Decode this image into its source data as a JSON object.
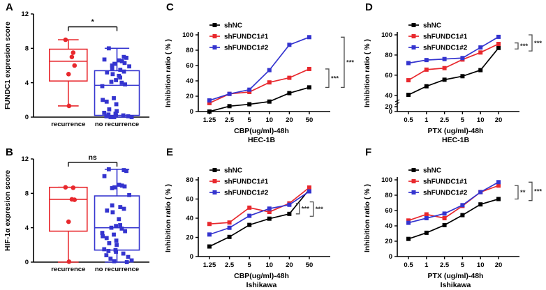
{
  "colors": {
    "black": "#000000",
    "red": "#E8282D",
    "blue": "#3434CF",
    "bracket": "#4d4d4d",
    "stars": "#2b2b2b"
  },
  "chart_data": [
    {
      "panel_label": "A",
      "type": "box",
      "ylabel": "FUNDC1 expresion score",
      "ylim": [
        0,
        12
      ],
      "yticks": [
        0,
        4,
        8,
        12
      ],
      "categories": [
        "recurrence",
        "no recurrence"
      ],
      "significance": {
        "label": "*",
        "y": 10.5
      },
      "groups": [
        {
          "name": "recurrence",
          "color": "#E8282D",
          "marker": "circle",
          "box": {
            "min": 1.3,
            "q1": 4.2,
            "median": 6.5,
            "q3": 7.9,
            "max": 9.0
          },
          "points": [
            9.0,
            7.5,
            7.0,
            6.0,
            5.0,
            1.3
          ]
        },
        {
          "name": "no recurrence",
          "color": "#3434CF",
          "marker": "square",
          "box": {
            "min": 0,
            "q1": 0.2,
            "median": 3.7,
            "q3": 5.4,
            "max": 8.0
          },
          "points": [
            8.0,
            7.0,
            6.9,
            6.7,
            6.6,
            6.5,
            6.3,
            6.2,
            6.0,
            5.9,
            5.7,
            5.5,
            5.3,
            5.2,
            5.0,
            4.8,
            4.6,
            4.3,
            4.1,
            4.0,
            3.8,
            3.6,
            2.2,
            2.0,
            1.8,
            1.5,
            0.9,
            0.7,
            0.5,
            0.4,
            0.3,
            0.2,
            0.2,
            0.1,
            0.1,
            0.0,
            0.0,
            0.0
          ]
        }
      ]
    },
    {
      "panel_label": "B",
      "type": "box",
      "ylabel": "HIF-1α expresion score",
      "ylim": [
        0,
        12
      ],
      "yticks": [
        0,
        4,
        8,
        12
      ],
      "categories": [
        "recurrence",
        "no recurrence"
      ],
      "significance": {
        "label": "ns",
        "y": 11.6
      },
      "groups": [
        {
          "name": "recurrence",
          "color": "#E8282D",
          "marker": "circle",
          "box": {
            "min": 0,
            "q1": 3.6,
            "median": 7.3,
            "q3": 8.7,
            "max": 8.7
          },
          "points": [
            8.7,
            8.65,
            7.3,
            7.25,
            4.7,
            0.05
          ]
        },
        {
          "name": "no recurrence",
          "color": "#3434CF",
          "marker": "square",
          "box": {
            "min": 0,
            "q1": 1.4,
            "median": 4.0,
            "q3": 7.7,
            "max": 10.8
          },
          "points": [
            10.8,
            10.7,
            10.6,
            10.0,
            9.0,
            8.9,
            8.8,
            8.7,
            8.6,
            7.8,
            6.6,
            6.4,
            6.2,
            6.0,
            5.8,
            5.0,
            4.3,
            4.2,
            4.0,
            3.9,
            3.6,
            3.4,
            3.2,
            3.0,
            2.8,
            2.5,
            2.2,
            2.0,
            1.5,
            1.4,
            1.3,
            1.2,
            1.0,
            0.8,
            0.6,
            0.4,
            0.2,
            0.1,
            0.0
          ]
        }
      ]
    },
    {
      "panel_label": "C",
      "type": "line",
      "x_categories": [
        "1.25",
        "2.5",
        "5",
        "10",
        "20",
        "50"
      ],
      "xlabel": "CBP(ug/ml)-48h",
      "cell_line": "HEC-1B",
      "ylabel": "Inhibition ratio ( % )",
      "ylim": [
        0,
        100
      ],
      "yticks": [
        0,
        20,
        40,
        60,
        80,
        100
      ],
      "series": [
        {
          "name": "shNC",
          "color": "#000000",
          "values": [
            0,
            7,
            9.5,
            13,
            24,
            31.5
          ]
        },
        {
          "name": "shFUNDC1#1",
          "color": "#E8282D",
          "values": [
            11,
            23,
            25.5,
            38,
            44,
            55.5
          ]
        },
        {
          "name": "shFUNDC1#2",
          "color": "#3434CF",
          "values": [
            14.5,
            23,
            28.5,
            54,
            87,
            97
          ]
        }
      ],
      "sig_brackets": [
        {
          "stars": "***",
          "x_offset": 6,
          "y_top": 55.5,
          "y_bottom": 31.5
        },
        {
          "stars": "***",
          "x_offset": 28,
          "y_top": 97,
          "y_bottom": 31.5
        }
      ]
    },
    {
      "panel_label": "D",
      "type": "line",
      "x_categories": [
        "0.5",
        "1",
        "2.5",
        "5",
        "10",
        "20"
      ],
      "xlabel": "PTX (ug/ml)-48h",
      "cell_line": "HEC-1B",
      "ylabel": "Inhibition ratio ( % )",
      "ylim": [
        35,
        100
      ],
      "yticks": [
        40,
        60,
        80,
        100
      ],
      "ybreak": {
        "lower_ticks": [
          0,
          20
        ]
      },
      "series": [
        {
          "name": "shNC",
          "color": "#000000",
          "values": [
            40.5,
            49,
            55.5,
            59,
            65,
            87
          ]
        },
        {
          "name": "shFUNDC1#1",
          "color": "#E8282D",
          "values": [
            55,
            65.5,
            67,
            75.5,
            82.5,
            91
          ]
        },
        {
          "name": "shFUNDC1#2",
          "color": "#3434CF",
          "values": [
            72,
            75,
            76,
            77,
            87.5,
            98
          ]
        }
      ],
      "sig_brackets": [
        {
          "stars": "***",
          "x_offset": 6,
          "y_top": 92,
          "y_bottom": 86
        },
        {
          "stars": "***",
          "x_offset": 26,
          "y_top": 100,
          "y_bottom": 84
        }
      ]
    },
    {
      "panel_label": "E",
      "type": "line",
      "x_categories": [
        "1.25",
        "2.5",
        "5",
        "10",
        "20",
        "50"
      ],
      "xlabel": "CBP(ug/ml)-48h",
      "cell_line": "Ishikawa",
      "ylabel": "Inhibition ratio ( % )",
      "ylim": [
        0,
        80
      ],
      "yticks": [
        0,
        20,
        40,
        60,
        80
      ],
      "series": [
        {
          "name": "shNC",
          "color": "#000000",
          "values": [
            10.5,
            20.5,
            33,
            39.5,
            44.5,
            70
          ]
        },
        {
          "name": "shFUNDC1#1",
          "color": "#E8282D",
          "values": [
            34,
            35.5,
            51,
            46.5,
            55.5,
            72
          ]
        },
        {
          "name": "shFUNDC1#2",
          "color": "#3434CF",
          "values": [
            23,
            30,
            42.5,
            50,
            54,
            68
          ]
        }
      ],
      "sig_brackets": [
        {
          "stars": "***",
          "x_frac": 0.8,
          "y_top": 55.5,
          "y_bottom": 44.5
        },
        {
          "stars": "***",
          "x_frac": 0.91,
          "y_top": 57,
          "y_bottom": 42
        }
      ]
    },
    {
      "panel_label": "F",
      "type": "line",
      "x_categories": [
        "0.5",
        "1",
        "2.5",
        "5",
        "10",
        "20"
      ],
      "xlabel": "PTX (ug/ml)-48h",
      "cell_line": "Ishikawa",
      "ylabel": "Inhibition ratio ( % )",
      "ylim": [
        0,
        100
      ],
      "yticks": [
        0,
        20,
        40,
        60,
        80,
        100
      ],
      "series": [
        {
          "name": "shNC",
          "color": "#000000",
          "values": [
            23,
            31,
            41,
            54,
            68,
            75
          ]
        },
        {
          "name": "shFUNDC1#1",
          "color": "#E8282D",
          "values": [
            47,
            55,
            50,
            66,
            84,
            92.5
          ]
        },
        {
          "name": "shFUNDC1#2",
          "color": "#3434CF",
          "values": [
            44,
            50,
            56,
            67,
            84,
            97
          ]
        }
      ],
      "sig_brackets": [
        {
          "stars": "**",
          "x_offset": 6,
          "y_top": 92.5,
          "y_bottom": 75
        },
        {
          "stars": "***",
          "x_offset": 26,
          "y_top": 97,
          "y_bottom": 73
        }
      ]
    }
  ]
}
